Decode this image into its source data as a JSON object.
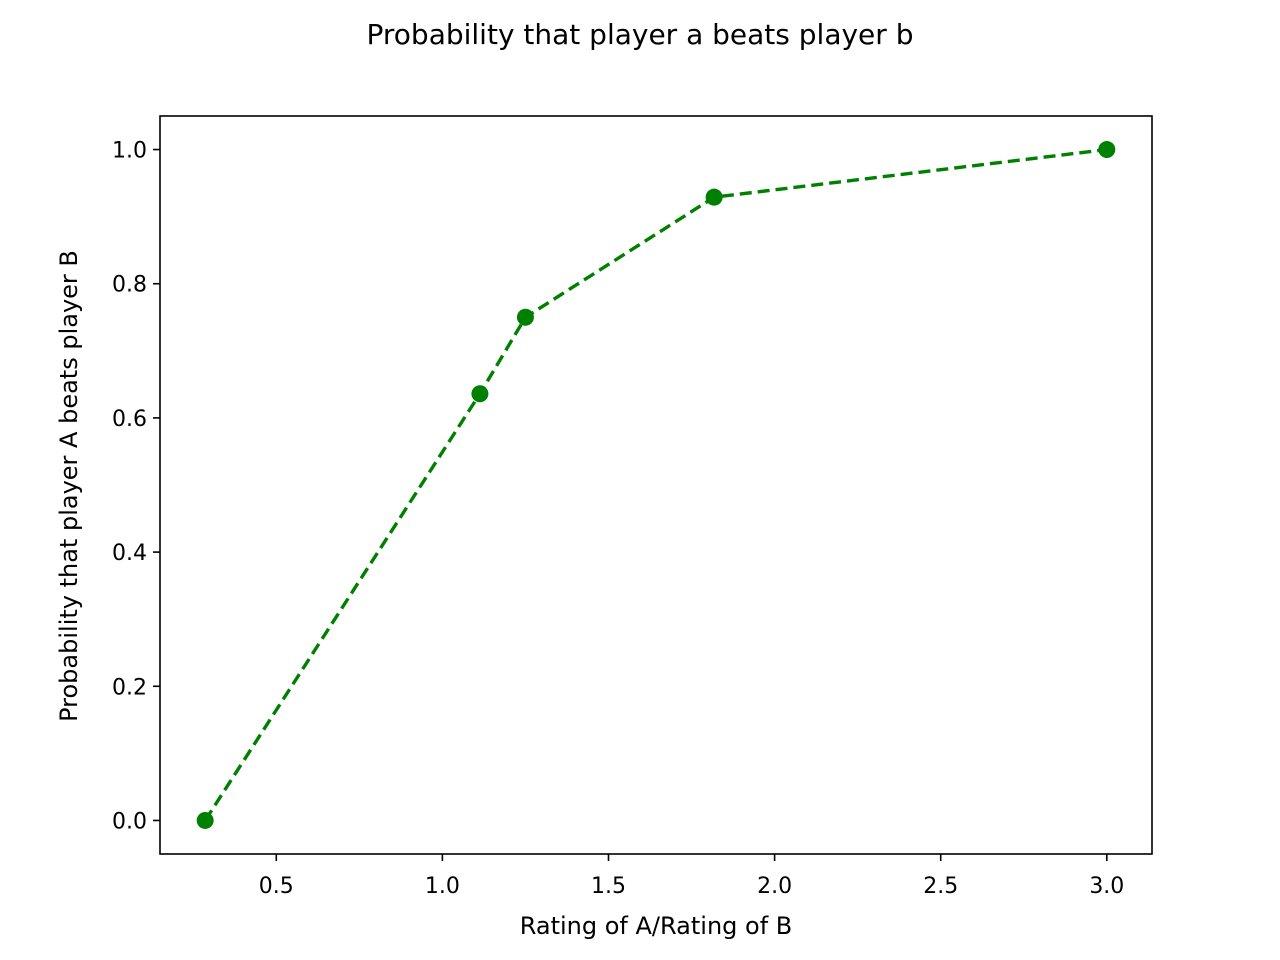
{
  "chart_data": {
    "type": "line",
    "title": "Probability that player a beats player b",
    "xlabel": "Rating of A/Rating of B",
    "ylabel": "Probability that player A beats player B",
    "x": [
      0.286,
      1.113,
      1.25,
      1.818,
      3.0
    ],
    "series": [
      {
        "values": [
          0.0,
          0.636,
          0.75,
          0.929,
          1.0
        ],
        "color": "#008000",
        "line_style": "dashed",
        "marker": "circle"
      }
    ],
    "xlim": [
      0.15,
      3.136
    ],
    "ylim": [
      -0.05,
      1.05
    ],
    "x_ticks": [
      0.5,
      1.0,
      1.5,
      2.0,
      2.5,
      3.0
    ],
    "x_tick_labels": [
      "0.5",
      "1.0",
      "1.5",
      "2.0",
      "2.5",
      "3.0"
    ],
    "y_ticks": [
      0.0,
      0.2,
      0.4,
      0.6,
      0.8,
      1.0
    ],
    "y_tick_labels": [
      "0.0",
      "0.2",
      "0.4",
      "0.6",
      "0.8",
      "1.0"
    ],
    "grid": false,
    "legend": "none"
  }
}
